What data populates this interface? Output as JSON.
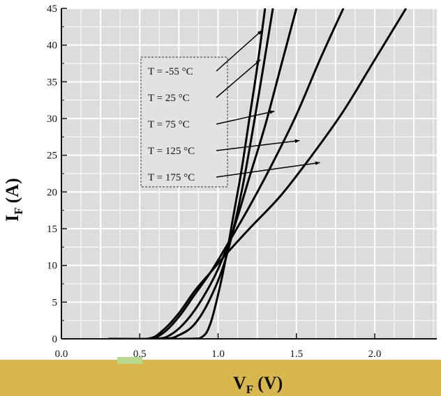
{
  "chart_data": {
    "type": "line",
    "title": "",
    "xlabel": {
      "main": "V",
      "sub": "F",
      "unit": "(V)"
    },
    "ylabel": {
      "main": "I",
      "sub": "F",
      "unit": "(A)"
    },
    "xlim": [
      0.0,
      2.5
    ],
    "ylim": [
      0,
      45
    ],
    "x_ticks": [
      {
        "value": 0.0,
        "label": "0.0"
      },
      {
        "value": 0.5,
        "label": "0.5"
      },
      {
        "value": 1.0,
        "label": "1.0"
      },
      {
        "value": 1.5,
        "label": "1.5"
      },
      {
        "value": 2.0,
        "label": "2.0"
      }
    ],
    "y_ticks": [
      {
        "value": 0,
        "label": "0"
      },
      {
        "value": 5,
        "label": "5"
      },
      {
        "value": 10,
        "label": "10"
      },
      {
        "value": 15,
        "label": "15"
      },
      {
        "value": 20,
        "label": "20"
      },
      {
        "value": 25,
        "label": "25"
      },
      {
        "value": 30,
        "label": "30"
      },
      {
        "value": 35,
        "label": "35"
      },
      {
        "value": 40,
        "label": "40"
      },
      {
        "value": 45,
        "label": "45"
      }
    ],
    "grid": true,
    "legend_placement": "top-left",
    "series": [
      {
        "name": "T = -55 °C",
        "x": [
          0.3,
          0.8,
          0.9,
          0.95,
          1.0,
          1.05,
          1.1,
          1.15,
          1.2,
          1.25,
          1.3
        ],
        "y": [
          0,
          0,
          0.3,
          2,
          6,
          11,
          17,
          23,
          30,
          37,
          45
        ],
        "annotate_at": [
          1.28,
          42
        ]
      },
      {
        "name": "T = 25 °C",
        "x": [
          0.3,
          0.65,
          0.75,
          0.85,
          0.95,
          1.05,
          1.15,
          1.25,
          1.35
        ],
        "y": [
          0,
          0,
          0.5,
          2,
          5.5,
          11,
          20,
          32,
          45
        ],
        "annotate_at": [
          1.27,
          38
        ]
      },
      {
        "name": "T = 75 °C",
        "x": [
          0.3,
          0.6,
          0.7,
          0.8,
          0.9,
          1.0,
          1.1,
          1.2,
          1.3,
          1.4,
          1.5
        ],
        "y": [
          0,
          0,
          0.6,
          2.5,
          5.5,
          9.5,
          15,
          22,
          29,
          37,
          45
        ],
        "annotate_at": [
          1.36,
          31
        ]
      },
      {
        "name": "T = 125 °C",
        "x": [
          0.3,
          0.55,
          0.65,
          0.75,
          0.85,
          0.95,
          1.05,
          1.2,
          1.35,
          1.5,
          1.65,
          1.8
        ],
        "y": [
          0,
          0,
          0.8,
          3,
          6,
          9,
          12.5,
          18,
          24,
          30.5,
          38,
          45
        ],
        "annotate_at": [
          1.52,
          27
        ]
      },
      {
        "name": "T = 175 °C",
        "x": [
          0.3,
          0.55,
          0.65,
          0.75,
          0.85,
          0.95,
          1.05,
          1.2,
          1.4,
          1.6,
          1.8,
          2.0,
          2.2
        ],
        "y": [
          0,
          0,
          1.2,
          3.5,
          6.5,
          9,
          11.5,
          15,
          19.5,
          25,
          31,
          38,
          45
        ],
        "annotate_at": [
          1.65,
          24
        ]
      }
    ]
  }
}
